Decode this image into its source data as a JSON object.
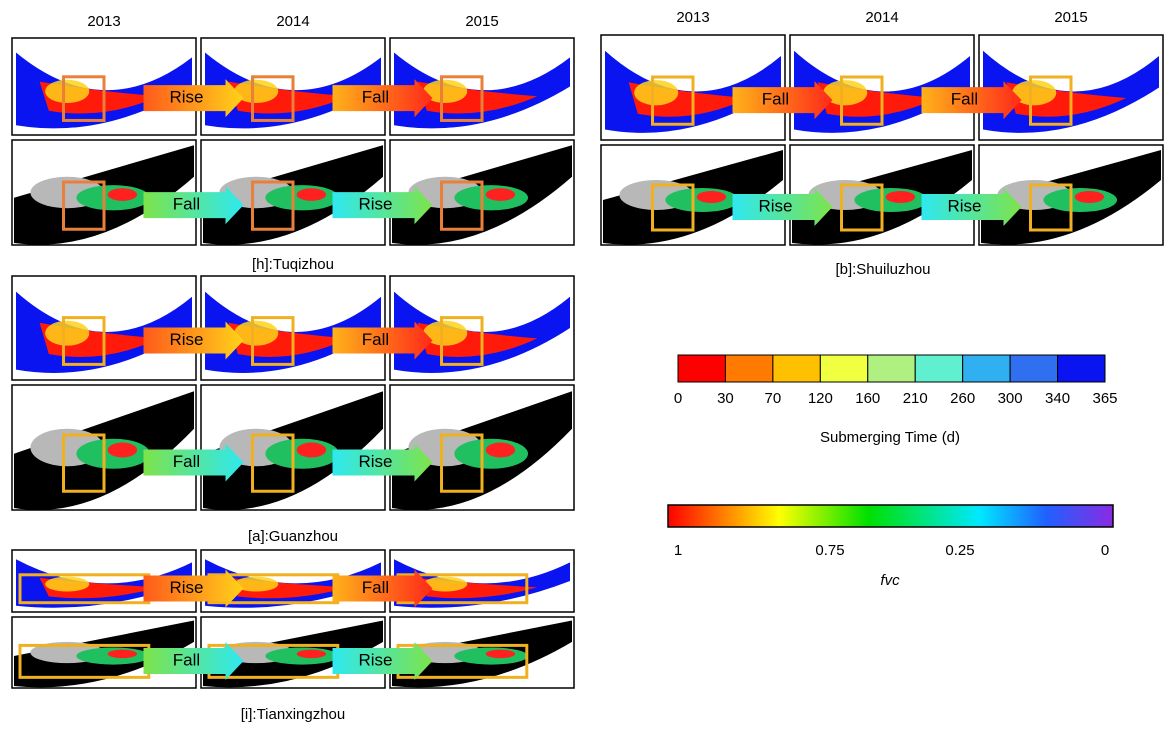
{
  "panels": [
    {
      "years": [
        "2013",
        "2014",
        "2015"
      ],
      "arrows": [
        [
          "Rise",
          "Fall"
        ],
        [
          "Fall",
          "Rise"
        ]
      ],
      "caption": "[h]:Tuqizhou"
    },
    {
      "arrows": [
        [
          "Rise",
          "Fall"
        ],
        [
          "Fall",
          "Rise"
        ]
      ],
      "caption": "[a]:Guanzhou"
    },
    {
      "arrows": [
        [
          "Rise",
          "Fall"
        ],
        [
          "Fall",
          "Rise"
        ]
      ],
      "caption": "[i]:Tianxingzhou"
    },
    {
      "years": [
        "2013",
        "2014",
        "2015"
      ],
      "arrows": [
        [
          "Fall",
          "Fall"
        ],
        [
          "Rise",
          "Rise"
        ]
      ],
      "caption": "[b]:Shuiluzhou"
    }
  ],
  "legends": [
    {
      "ticks": [
        0,
        30,
        70,
        120,
        160,
        210,
        260,
        300,
        340,
        365
      ],
      "title": "Submerging Time (d)"
    },
    {
      "ticks": [
        "1",
        "0.75",
        "0.25",
        "0"
      ],
      "title": "fvc"
    }
  ]
}
